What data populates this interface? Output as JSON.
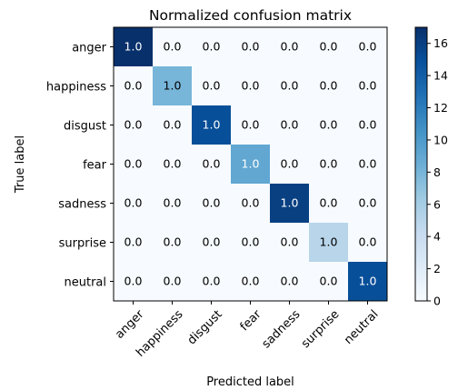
{
  "chart_data": {
    "type": "heatmap",
    "title": "Normalized confusion matrix",
    "xlabel": "Predicted label",
    "ylabel": "True label",
    "x_categories": [
      "anger",
      "happiness",
      "disgust",
      "fear",
      "sadness",
      "surprise",
      "neutral"
    ],
    "y_categories": [
      "anger",
      "happiness",
      "disgust",
      "fear",
      "sadness",
      "surprise",
      "neutral"
    ],
    "cell_labels": [
      [
        "1.0",
        "0.0",
        "0.0",
        "0.0",
        "0.0",
        "0.0",
        "0.0"
      ],
      [
        "0.0",
        "1.0",
        "0.0",
        "0.0",
        "0.0",
        "0.0",
        "0.0"
      ],
      [
        "0.0",
        "0.0",
        "1.0",
        "0.0",
        "0.0",
        "0.0",
        "0.0"
      ],
      [
        "0.0",
        "0.0",
        "0.0",
        "1.0",
        "0.0",
        "0.0",
        "0.0"
      ],
      [
        "0.0",
        "0.0",
        "0.0",
        "0.0",
        "1.0",
        "0.0",
        "0.0"
      ],
      [
        "0.0",
        "0.0",
        "0.0",
        "0.0",
        "0.0",
        "1.0",
        "0.0"
      ],
      [
        "0.0",
        "0.0",
        "0.0",
        "0.0",
        "0.0",
        "0.0",
        "1.0"
      ]
    ],
    "color_values": [
      [
        17,
        0,
        0,
        0,
        0,
        0,
        0
      ],
      [
        0,
        8,
        0,
        0,
        0,
        0,
        0
      ],
      [
        0,
        0,
        15,
        0,
        0,
        0,
        0
      ],
      [
        0,
        0,
        0,
        9,
        0,
        0,
        0
      ],
      [
        0,
        0,
        0,
        0,
        16,
        0,
        0
      ],
      [
        0,
        0,
        0,
        0,
        0,
        5,
        0
      ],
      [
        0,
        0,
        0,
        0,
        0,
        0,
        15
      ]
    ],
    "colorbar": {
      "range": [
        0,
        17
      ],
      "ticks": [
        0,
        2,
        4,
        6,
        8,
        10,
        12,
        14,
        16
      ],
      "colormap": "Blues",
      "colors": [
        "#f7fbff",
        "#deebf7",
        "#c6dbef",
        "#9ecae1",
        "#6baed6",
        "#4292c6",
        "#2171b5",
        "#08519c",
        "#08306b"
      ]
    },
    "x_tick_rotation": "45 degrees"
  }
}
